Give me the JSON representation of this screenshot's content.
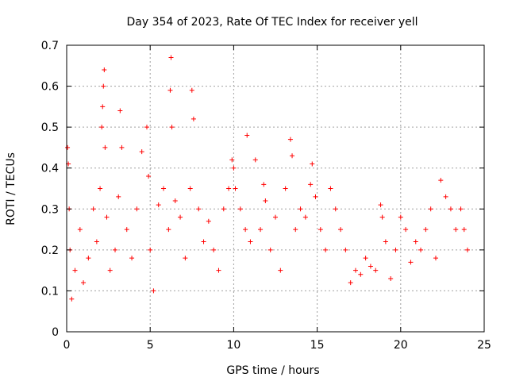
{
  "chart_data": {
    "type": "scatter",
    "title": "Day 354 of 2023, Rate Of TEC Index for receiver yell",
    "xlabel": "GPS time / hours",
    "ylabel": "ROTI / TECUs",
    "xlim": [
      0,
      25
    ],
    "ylim": [
      0,
      0.7
    ],
    "xticks": [
      0,
      5,
      10,
      15,
      20,
      25
    ],
    "yticks": [
      0,
      0.1,
      0.2,
      0.3,
      0.4,
      0.5,
      0.6,
      0.7
    ],
    "xtick_labels": [
      "0",
      "5",
      "10",
      "15",
      "20",
      "25"
    ],
    "ytick_labels": [
      "0",
      "0.1",
      "0.2",
      "0.3",
      "0.4",
      "0.5",
      "0.6",
      "0.7"
    ],
    "grid": true,
    "marker": "+",
    "marker_color": "#ff0000",
    "series": [
      {
        "name": "ROTI",
        "x": [
          0.05,
          0.1,
          0.15,
          0.2,
          0.3,
          0.5,
          0.8,
          1.0,
          1.3,
          1.6,
          1.8,
          2.0,
          2.1,
          2.15,
          2.2,
          2.25,
          2.3,
          2.4,
          2.6,
          2.9,
          3.1,
          3.2,
          3.3,
          3.6,
          3.9,
          4.2,
          4.5,
          4.8,
          4.9,
          5.0,
          5.2,
          5.5,
          5.8,
          6.1,
          6.2,
          6.25,
          6.3,
          6.5,
          6.8,
          7.1,
          7.4,
          7.5,
          7.6,
          7.9,
          8.2,
          8.5,
          8.8,
          9.1,
          9.4,
          9.7,
          9.9,
          10.0,
          10.1,
          10.4,
          10.7,
          10.8,
          11.0,
          11.3,
          11.6,
          11.8,
          11.9,
          12.2,
          12.5,
          12.8,
          13.1,
          13.4,
          13.5,
          13.7,
          14.0,
          14.3,
          14.6,
          14.7,
          14.9,
          15.2,
          15.5,
          15.8,
          16.1,
          16.4,
          16.7,
          17.0,
          17.3,
          17.6,
          17.9,
          18.2,
          18.5,
          18.8,
          18.9,
          19.1,
          19.4,
          19.7,
          20.0,
          20.3,
          20.6,
          20.9,
          21.2,
          21.5,
          21.8,
          22.1,
          22.4,
          22.7,
          23.0,
          23.3,
          23.6,
          23.8,
          24.0
        ],
        "y": [
          0.45,
          0.41,
          0.3,
          0.2,
          0.08,
          0.15,
          0.25,
          0.12,
          0.18,
          0.3,
          0.22,
          0.35,
          0.5,
          0.55,
          0.6,
          0.64,
          0.45,
          0.28,
          0.15,
          0.2,
          0.33,
          0.54,
          0.45,
          0.25,
          0.18,
          0.3,
          0.44,
          0.5,
          0.38,
          0.2,
          0.1,
          0.31,
          0.35,
          0.25,
          0.59,
          0.67,
          0.5,
          0.32,
          0.28,
          0.18,
          0.35,
          0.59,
          0.52,
          0.3,
          0.22,
          0.27,
          0.2,
          0.15,
          0.3,
          0.35,
          0.42,
          0.4,
          0.35,
          0.3,
          0.25,
          0.48,
          0.22,
          0.42,
          0.25,
          0.36,
          0.32,
          0.2,
          0.28,
          0.15,
          0.35,
          0.47,
          0.43,
          0.25,
          0.3,
          0.28,
          0.36,
          0.41,
          0.33,
          0.25,
          0.2,
          0.35,
          0.3,
          0.25,
          0.2,
          0.12,
          0.15,
          0.14,
          0.18,
          0.16,
          0.15,
          0.31,
          0.28,
          0.22,
          0.13,
          0.2,
          0.28,
          0.25,
          0.17,
          0.22,
          0.2,
          0.25,
          0.3,
          0.18,
          0.37,
          0.33,
          0.3,
          0.25,
          0.3,
          0.25,
          0.2
        ]
      }
    ]
  }
}
